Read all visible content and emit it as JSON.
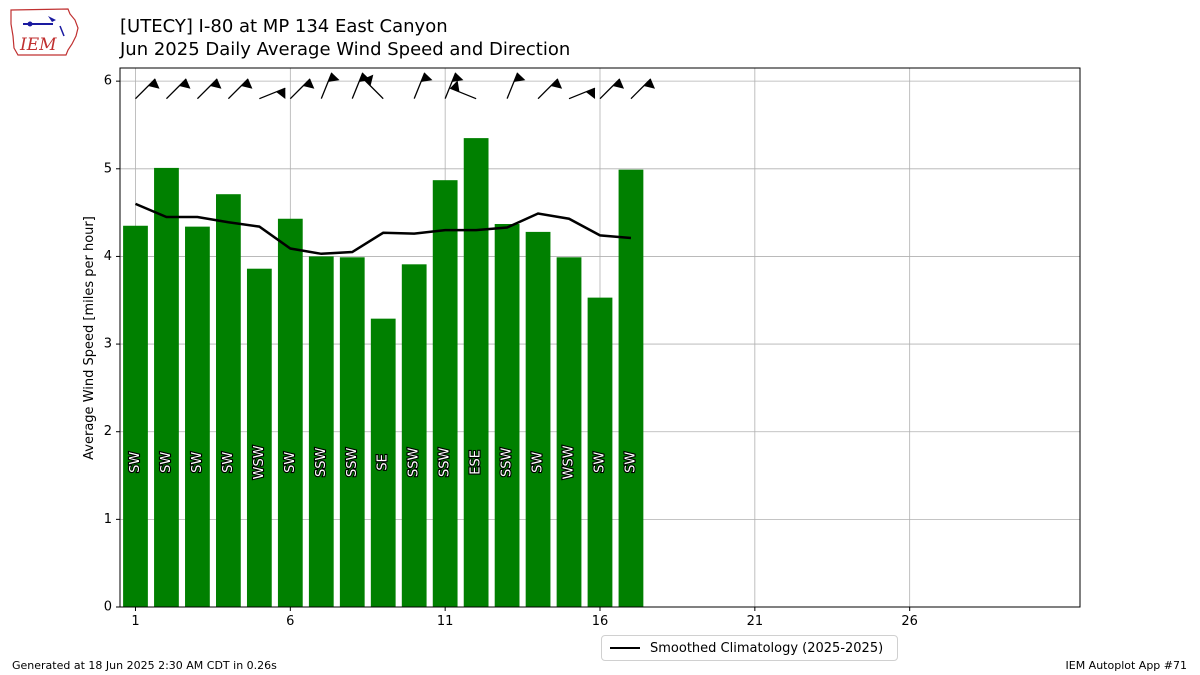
{
  "header": {
    "title_line1": "[UTECY] I-80 at MP 134 East Canyon",
    "title_line2": "Jun 2025 Daily Average Wind Speed and Direction"
  },
  "logo": {
    "text": "IEM"
  },
  "footer": {
    "left": "Generated at 18 Jun 2025 2:30 AM CDT in 0.26s",
    "right": "IEM Autoplot App #71"
  },
  "legend": {
    "label": "Smoothed Climatology (2025-2025)"
  },
  "colors": {
    "bar": "#008000",
    "climo_line": "#000000",
    "grid": "#b0b0b0"
  },
  "chart_data": {
    "type": "bar",
    "title": "Jun 2025 Daily Average Wind Speed and Direction",
    "ylabel": "Average Wind Speed [miles per hour]",
    "xlabel": "",
    "xlim": [
      0.5,
      31.5
    ],
    "ylim": [
      0,
      6.15
    ],
    "xticks": [
      1,
      6,
      11,
      16,
      21,
      26
    ],
    "yticks": [
      0,
      1,
      2,
      3,
      4,
      5,
      6
    ],
    "grid": true,
    "legend_position": "bottom-center, below axes",
    "x": [
      1,
      2,
      3,
      4,
      5,
      6,
      7,
      8,
      9,
      10,
      11,
      12,
      13,
      14,
      15,
      16,
      17
    ],
    "values": [
      4.35,
      5.01,
      4.34,
      4.71,
      3.86,
      4.43,
      4.0,
      3.99,
      3.29,
      3.91,
      4.87,
      5.35,
      4.37,
      4.28,
      3.99,
      3.53,
      4.99
    ],
    "directions": [
      "SW",
      "SW",
      "SW",
      "SW",
      "WSW",
      "SW",
      "SSW",
      "SSW",
      "SE",
      "SSW",
      "SSW",
      "ESE",
      "SSW",
      "SW",
      "WSW",
      "SW",
      "SW"
    ],
    "direction_degrees": [
      225,
      225,
      225,
      225,
      248,
      225,
      202,
      202,
      135,
      202,
      202,
      112,
      202,
      225,
      248,
      225,
      225
    ],
    "series": [
      {
        "name": "Smoothed Climatology (2025-2025)",
        "type": "line",
        "x": [
          1,
          2,
          3,
          4,
          5,
          6,
          7,
          8,
          9,
          10,
          11,
          12,
          13,
          14,
          15,
          16,
          17
        ],
        "values": [
          4.6,
          4.45,
          4.45,
          4.39,
          4.34,
          4.09,
          4.03,
          4.05,
          4.27,
          4.26,
          4.3,
          4.3,
          4.33,
          4.49,
          4.43,
          4.24,
          4.21
        ]
      }
    ]
  }
}
